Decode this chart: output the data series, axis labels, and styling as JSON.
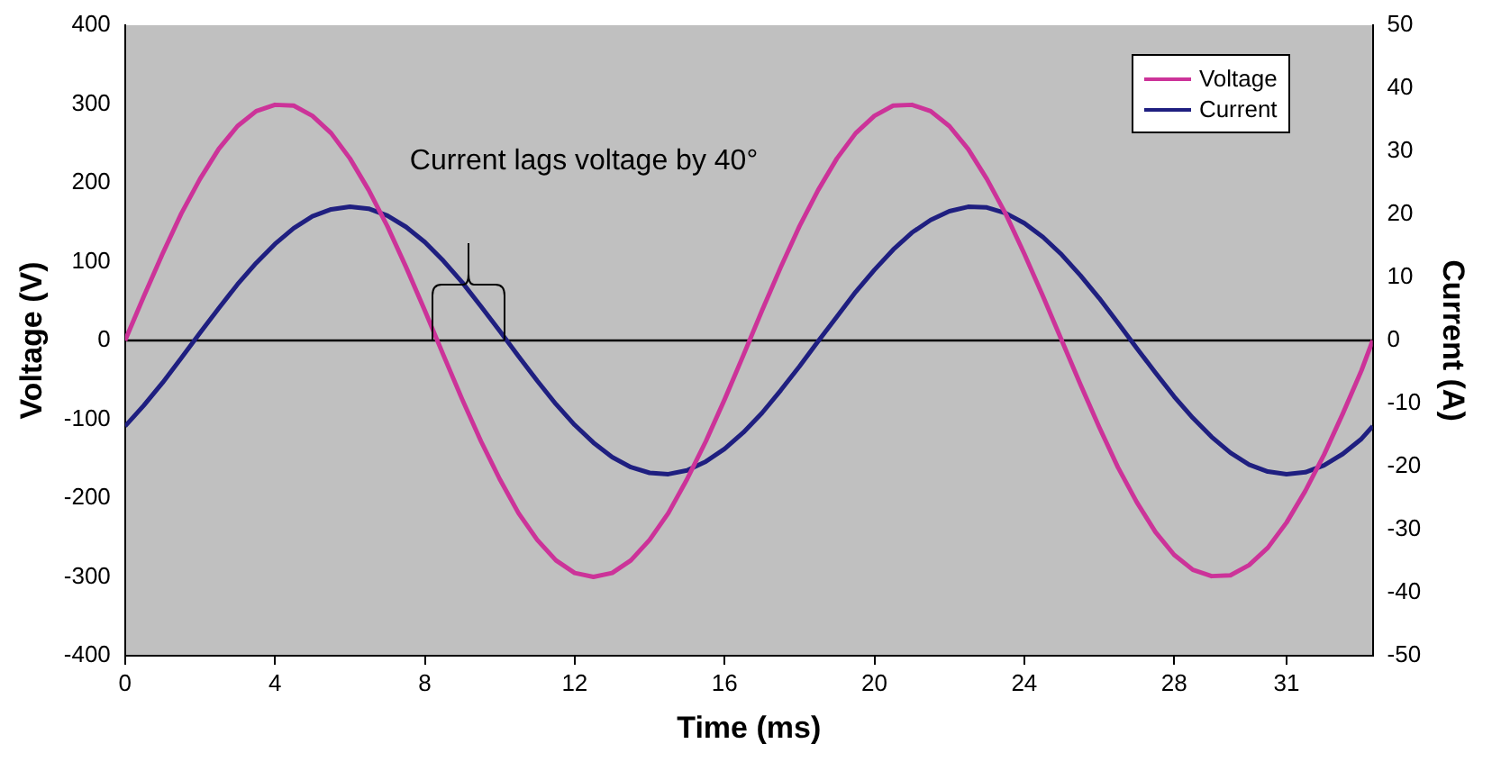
{
  "chart_data": {
    "type": "line",
    "xlabel": "Time (ms)",
    "ylabel": "Voltage (V)",
    "y2label": "Current (A)",
    "x": [
      0,
      0.5,
      1,
      1.5,
      2,
      2.5,
      3,
      3.5,
      4,
      4.5,
      5,
      5.5,
      6,
      6.5,
      7,
      7.5,
      8,
      8.5,
      9,
      9.5,
      10,
      10.5,
      11,
      11.5,
      12,
      12.5,
      13,
      13.5,
      14,
      14.5,
      15,
      15.5,
      16,
      16.5,
      17,
      17.5,
      18,
      18.5,
      19,
      19.5,
      20,
      20.5,
      21,
      21.5,
      22,
      22.5,
      23,
      23.5,
      24,
      24.5,
      25,
      25.5,
      26,
      26.5,
      27,
      27.5,
      28,
      28.5,
      29,
      29.5,
      30,
      30.5,
      31,
      31.5,
      32,
      32.5,
      33,
      33.3
    ],
    "series": [
      {
        "name": "Voltage",
        "color": "#cc3399",
        "values": [
          0,
          56,
          110,
          161,
          205,
          243,
          272,
          291,
          299,
          298,
          285,
          263,
          231,
          191,
          145,
          93,
          38,
          -19,
          -75,
          -128,
          -176,
          -219,
          -253,
          -279,
          -295,
          -300,
          -295,
          -279,
          -253,
          -219,
          -176,
          -128,
          -75,
          -19,
          38,
          93,
          145,
          191,
          231,
          263,
          285,
          298,
          299,
          291,
          272,
          243,
          205,
          161,
          110,
          56,
          0,
          -56,
          -110,
          -161,
          -205,
          -243,
          -272,
          -291,
          -299,
          -298,
          -285,
          -263,
          -231,
          -191,
          -145,
          -93,
          -38,
          0
        ]
      },
      {
        "name": "Current",
        "color": "#1f1f80",
        "axis": "y2",
        "values": [
          -13.6,
          -10.3,
          -6.7,
          -2.8,
          1.2,
          5.1,
          8.9,
          12.3,
          15.3,
          17.8,
          19.7,
          20.8,
          21.2,
          20.9,
          19.8,
          18.0,
          15.6,
          12.6,
          9.2,
          5.4,
          1.5,
          -2.5,
          -6.4,
          -10.1,
          -13.4,
          -16.2,
          -18.5,
          -20.1,
          -21.0,
          -21.2,
          -20.6,
          -19.2,
          -17.2,
          -14.6,
          -11.5,
          -7.9,
          -4.1,
          -0.1,
          3.8,
          7.7,
          11.2,
          14.4,
          17.1,
          19.1,
          20.5,
          21.2,
          21.1,
          20.2,
          18.6,
          16.4,
          13.6,
          10.3,
          6.7,
          2.8,
          -1.2,
          -5.1,
          -8.9,
          -12.3,
          -15.3,
          -17.8,
          -19.7,
          -20.8,
          -21.2,
          -20.9,
          -19.8,
          -18.0,
          -15.6,
          -13.6
        ]
      }
    ],
    "xlim": [
      0,
      33.3
    ],
    "xticks": [
      0,
      4,
      8,
      12,
      16,
      20,
      24,
      28,
      31
    ],
    "ylim": [
      -400,
      400
    ],
    "yticks": [
      -400,
      -300,
      -200,
      -100,
      0,
      100,
      200,
      300,
      400
    ],
    "y2lim": [
      -50,
      50
    ],
    "y2ticks": [
      -50,
      -40,
      -30,
      -20,
      -10,
      0,
      10,
      20,
      30,
      40,
      50
    ],
    "ref_lines": [
      {
        "axis": "y",
        "value": 0,
        "color": "#000000"
      }
    ],
    "annotations": [
      "Current lags voltage by 40°"
    ],
    "grid": false,
    "legend": "top right",
    "line_style": "solid"
  }
}
